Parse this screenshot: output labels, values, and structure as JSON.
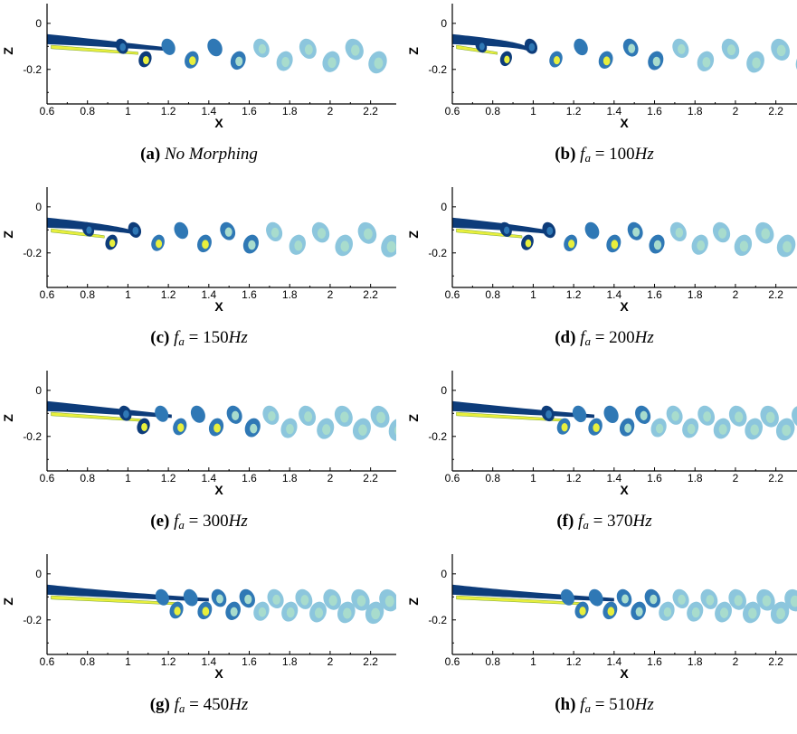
{
  "figure": {
    "axes": {
      "xlabel": "X",
      "ylabel": "Z",
      "xticks": [
        "0.6",
        "0.8",
        "1",
        "1.2",
        "1.4",
        "1.6",
        "1.8",
        "2",
        "2.2"
      ],
      "zticks": [
        "0",
        "-0.2"
      ],
      "xlim": [
        0.6,
        2.3
      ],
      "zlim": [
        -0.35,
        0.07
      ]
    },
    "colors": {
      "dark_blue": "#0d3c7a",
      "mid_blue": "#2f78b5",
      "light_blue": "#8cc6dd",
      "aqua": "#a8dccd",
      "yellow": "#e8ef3c"
    },
    "panels": [
      {
        "tag": "(a)",
        "text": "No Morphing",
        "shedding": 0
      },
      {
        "tag": "(b)",
        "sym": "f",
        "sub": "a",
        "eq": " = 100",
        "unit": "Hz",
        "shedding": 100
      },
      {
        "tag": "(c)",
        "sym": "f",
        "sub": "a",
        "eq": " = 150",
        "unit": "Hz",
        "shedding": 150
      },
      {
        "tag": "(d)",
        "sym": "f",
        "sub": "a",
        "eq": " = 200",
        "unit": "Hz",
        "shedding": 200
      },
      {
        "tag": "(e)",
        "sym": "f",
        "sub": "a",
        "eq": " = 300",
        "unit": "Hz",
        "shedding": 300
      },
      {
        "tag": "(f)",
        "sym": "f",
        "sub": "a",
        "eq": " = 370",
        "unit": "Hz",
        "shedding": 370
      },
      {
        "tag": "(g)",
        "sym": "f",
        "sub": "a",
        "eq": " = 450",
        "unit": "Hz",
        "shedding": 450
      },
      {
        "tag": "(h)",
        "sym": "f",
        "sub": "a",
        "eq": " = 510",
        "unit": "Hz",
        "shedding": 510
      }
    ]
  }
}
